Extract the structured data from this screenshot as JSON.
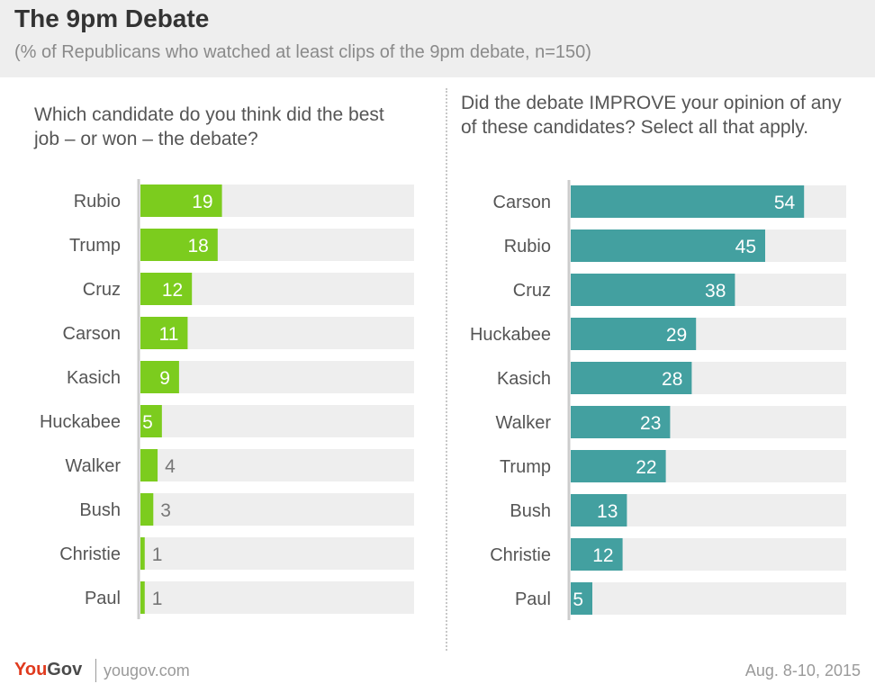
{
  "header": {
    "title": "The 9pm Debate",
    "subtitle": "(% of Republicans who watched at least clips of the 9pm debate, n=150)"
  },
  "footer": {
    "logo_you": "You",
    "logo_gov": "Gov",
    "url": "yougov.com",
    "date": "Aug. 8-10, 2015"
  },
  "colors": {
    "left_bar": "#7ccc1e",
    "right_bar": "#43a0a0",
    "track": "#eeeeee",
    "axis": "#cccccc"
  },
  "chart_data": [
    {
      "type": "bar",
      "orientation": "horizontal",
      "title": "Which candidate do you think did the best job – or won – the debate?",
      "categories": [
        "Rubio",
        "Trump",
        "Cruz",
        "Carson",
        "Kasich",
        "Huckabee",
        "Walker",
        "Bush",
        "Christie",
        "Paul"
      ],
      "values": [
        19,
        18,
        12,
        11,
        9,
        5,
        4,
        3,
        1,
        1
      ],
      "xlim": [
        0,
        60
      ],
      "grid": false
    },
    {
      "type": "bar",
      "orientation": "horizontal",
      "title": "Did the debate IMPROVE your opinion of any of these candidates? Select all that apply.",
      "categories": [
        "Carson",
        "Rubio",
        "Cruz",
        "Huckabee",
        "Kasich",
        "Walker",
        "Trump",
        "Bush",
        "Christie",
        "Paul"
      ],
      "values": [
        54,
        45,
        38,
        29,
        28,
        23,
        22,
        13,
        12,
        5
      ],
      "xlim": [
        0,
        60
      ],
      "grid": false
    }
  ]
}
